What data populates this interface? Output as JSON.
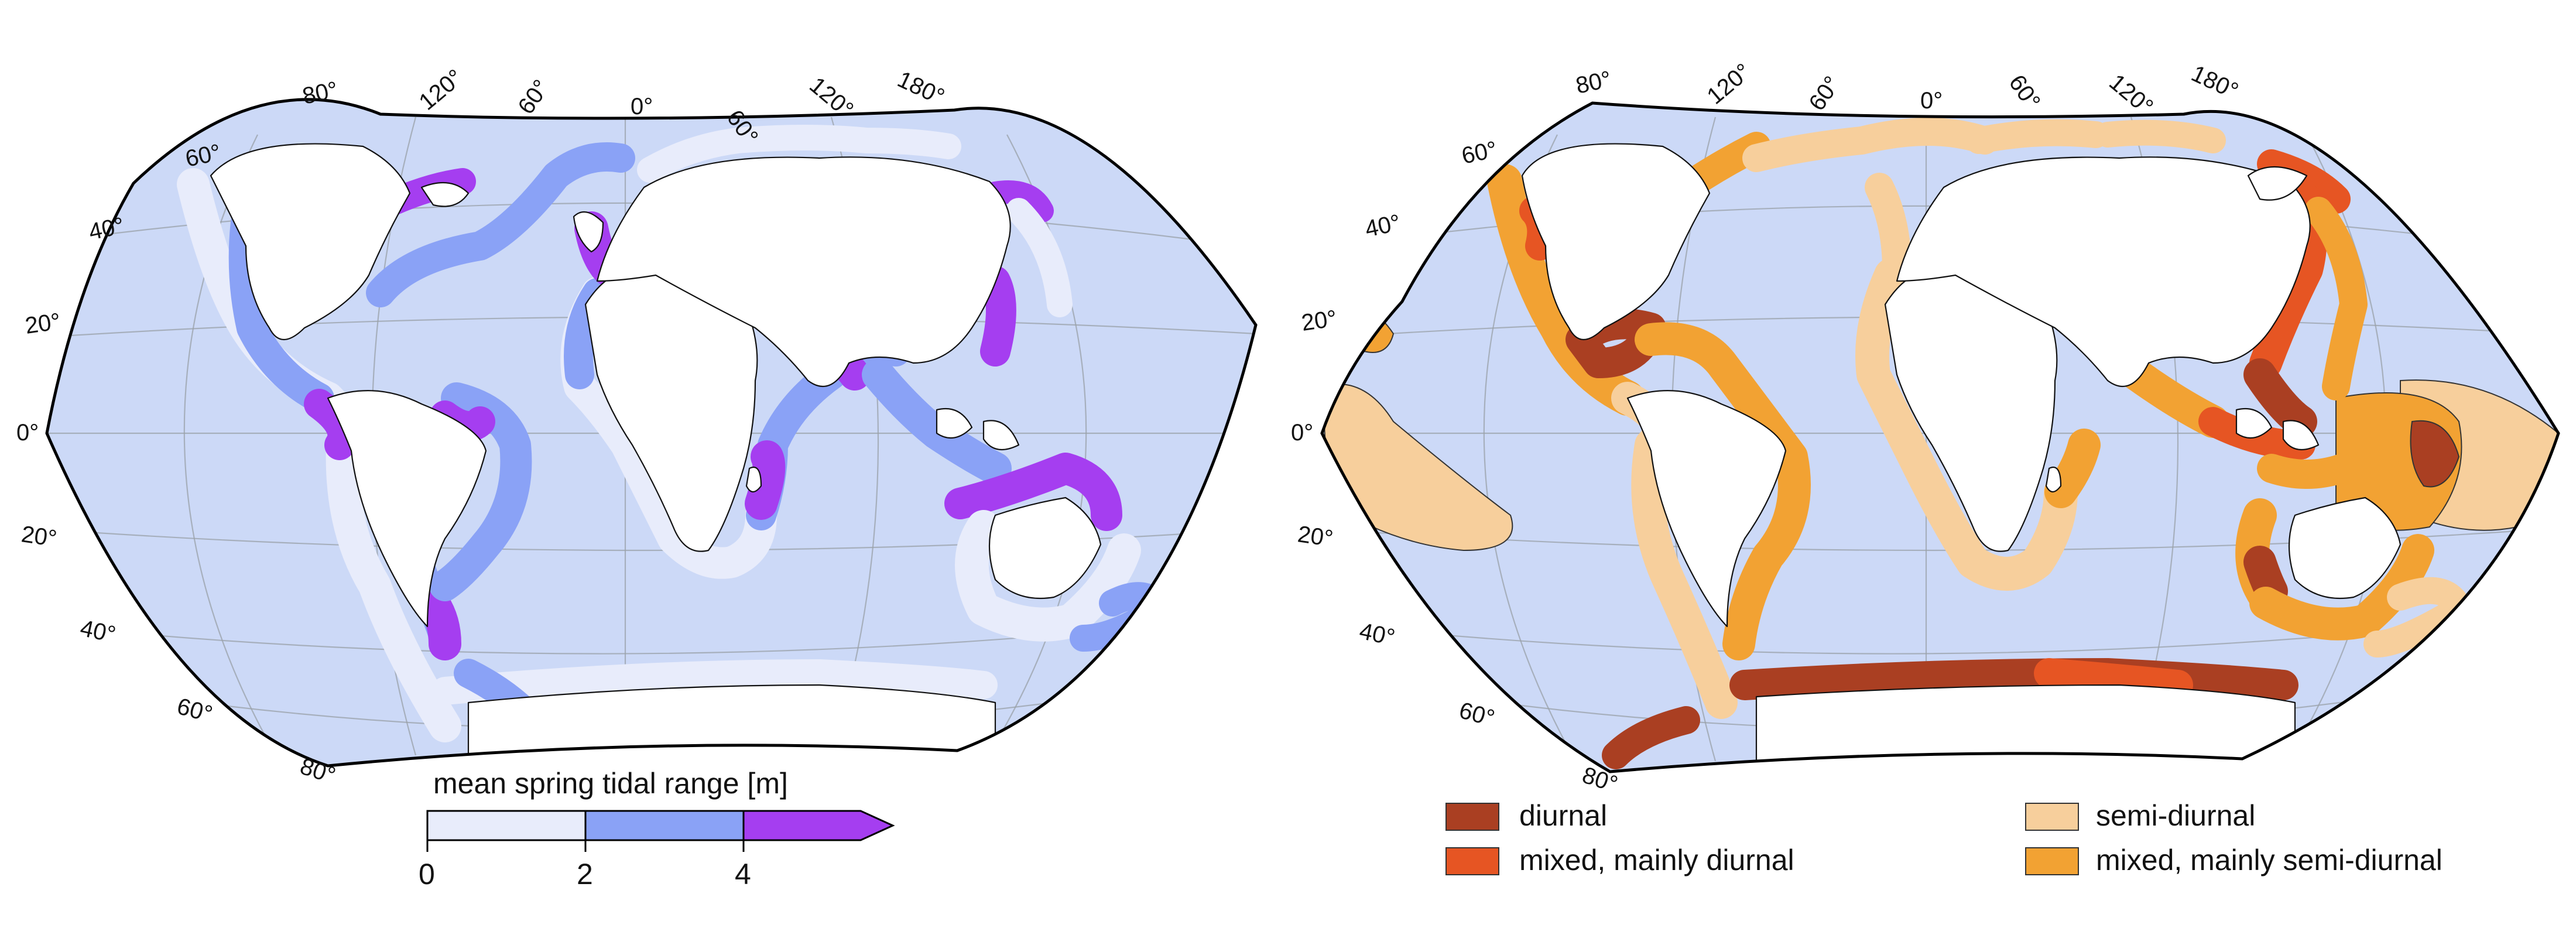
{
  "colors": {
    "ocean": "#ccd9f7",
    "land": "#ffffff",
    "tidal_0_2": "#e8ecfb",
    "tidal_2_4": "#8aa2f6",
    "tidal_4_plus": "#a53ef0",
    "diurnal": "#aa3f22",
    "mixed_diurnal": "#e65523",
    "semi_diurnal": "#f7cf9c",
    "mixed_semi_diurnal": "#f2a233"
  },
  "left_map": {
    "lon_labels": [
      "80°",
      "120°",
      "60°",
      "0°",
      "60°",
      "120°",
      "180°"
    ],
    "lat_labels": [
      "60°",
      "40°",
      "20°",
      "0°",
      "20°",
      "40°",
      "60°",
      "80°"
    ],
    "colorbar": {
      "title": "mean spring tidal range [m]",
      "ticks": [
        "0",
        "2",
        "4"
      ]
    }
  },
  "right_map": {
    "lon_labels": [
      "80°",
      "120°",
      "60°",
      "0°",
      "60°",
      "120°",
      "180°"
    ],
    "lat_labels": [
      "60°",
      "40°",
      "20°",
      "0°",
      "20°",
      "40°",
      "60°",
      "80°"
    ],
    "legend": [
      {
        "label": "diurnal",
        "color_key": "diurnal"
      },
      {
        "label": "mixed, mainly diurnal",
        "color_key": "mixed_diurnal"
      },
      {
        "label": "semi-diurnal",
        "color_key": "semi_diurnal"
      },
      {
        "label": "mixed, mainly semi-diurnal",
        "color_key": "mixed_semi_diurnal"
      }
    ]
  }
}
